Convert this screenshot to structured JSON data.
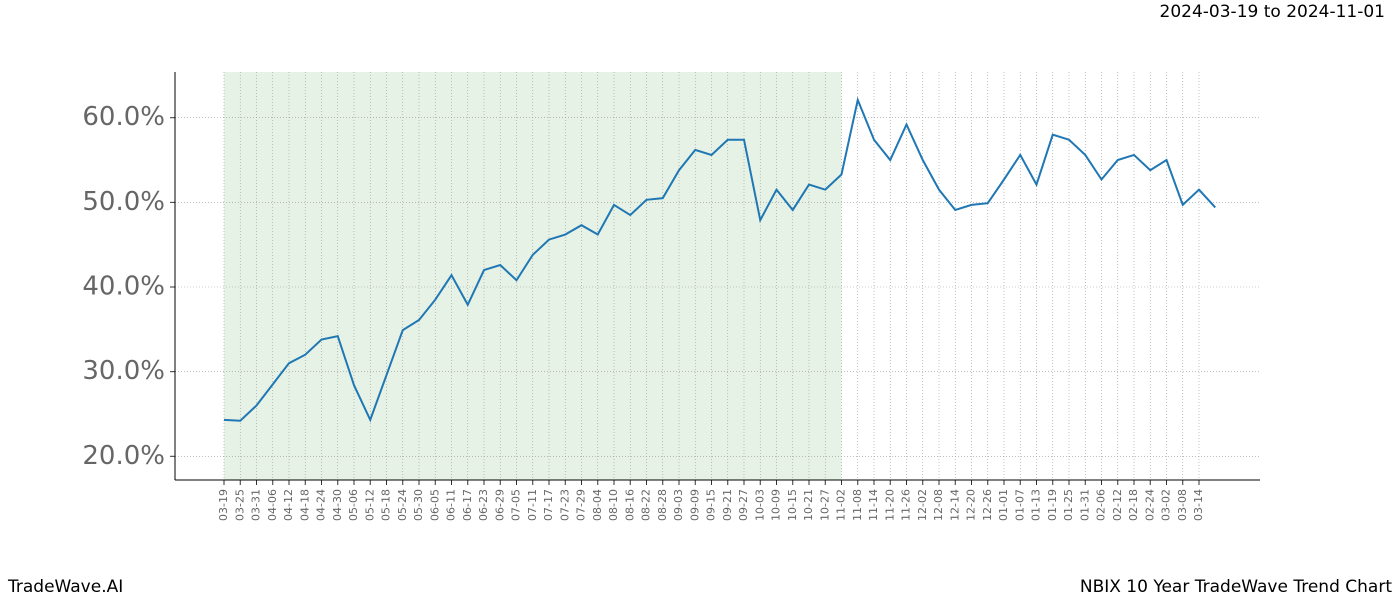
{
  "chart_data": {
    "type": "line",
    "title": "2024-03-19 to 2024-11-01",
    "footer_left": "TradeWave.AI",
    "footer_right": "NBIX 10 Year TradeWave Trend Chart",
    "categories": [
      "03-19",
      "03-25",
      "03-31",
      "04-06",
      "04-12",
      "04-18",
      "04-24",
      "04-30",
      "05-06",
      "05-12",
      "05-18",
      "05-24",
      "05-30",
      "06-05",
      "06-11",
      "06-17",
      "06-23",
      "06-29",
      "07-05",
      "07-11",
      "07-17",
      "07-23",
      "07-29",
      "08-04",
      "08-10",
      "08-16",
      "08-22",
      "08-28",
      "09-03",
      "09-09",
      "09-15",
      "09-21",
      "09-27",
      "10-03",
      "10-09",
      "10-15",
      "10-21",
      "10-27",
      "11-02",
      "11-08",
      "11-14",
      "11-20",
      "11-26",
      "12-02",
      "12-08",
      "12-14",
      "12-20",
      "12-26",
      "01-01",
      "01-07",
      "01-13",
      "01-19",
      "01-25",
      "01-31",
      "02-06",
      "02-12",
      "02-18",
      "02-24",
      "03-02",
      "03-08",
      "03-14",
      null
    ],
    "series": [
      {
        "color": "#1f77b4",
        "values": [
          24.3,
          24.2,
          26,
          28.5,
          31,
          32,
          33.8,
          34.2,
          28.4,
          24.3,
          29.6,
          34.9,
          36.1,
          38.5,
          41.4,
          37.9,
          42,
          42.6,
          40.8,
          43.8,
          45.6,
          46.2,
          47.3,
          46.2,
          49.7,
          48.5,
          50.3,
          50.5,
          53.8,
          56.2,
          55.6,
          57.4,
          57.4,
          47.9,
          51.5,
          49.1,
          52.1,
          51.5,
          53.3,
          62.1,
          57.4,
          55,
          59.2,
          55,
          51.5,
          49.1,
          49.7,
          49.9,
          52.7,
          55.6,
          52.1,
          58,
          57.4,
          55.6,
          52.7,
          55,
          55.6,
          53.8,
          55,
          49.7,
          51.5,
          49.4
        ]
      }
    ],
    "shade": {
      "from": 0,
      "to": 38,
      "color": "#e6f2e6"
    },
    "ylim": [
      17.2,
      65.4
    ],
    "yticks": [
      {
        "value": 20,
        "label": "20.0%"
      },
      {
        "value": 30,
        "label": "30.0%"
      },
      {
        "value": 40,
        "label": "40.0%"
      },
      {
        "value": 50,
        "label": "50.0%"
      },
      {
        "value": 60,
        "label": "60.0%"
      }
    ],
    "grid": true
  }
}
